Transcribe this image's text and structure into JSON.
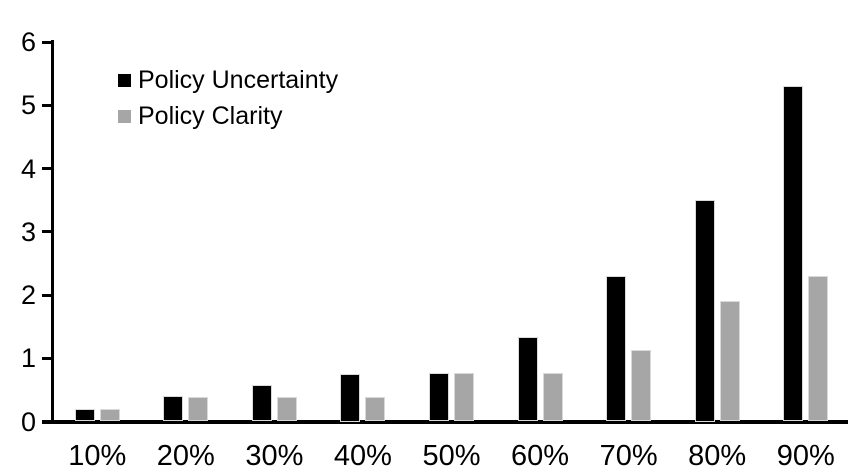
{
  "chart_data": {
    "type": "bar",
    "title": "",
    "xlabel": "",
    "ylabel": "",
    "categories": [
      "10%",
      "20%",
      "30%",
      "40%",
      "50%",
      "60%",
      "70%",
      "80%",
      "90%"
    ],
    "series": [
      {
        "name": "Policy Uncertainty",
        "color": "#000000",
        "values": [
          0.2,
          0.4,
          0.57,
          0.75,
          0.77,
          1.33,
          2.3,
          3.5,
          5.3
        ]
      },
      {
        "name": "Policy Clarity",
        "color": "#a6a6a6",
        "values": [
          0.2,
          0.38,
          0.38,
          0.38,
          0.77,
          0.77,
          1.13,
          1.9,
          2.3
        ]
      }
    ],
    "ylim": [
      0,
      6
    ],
    "yticks": [
      0,
      1,
      2,
      3,
      4,
      5,
      6
    ],
    "grid": false,
    "legend_position": "top-left",
    "background_color": "#ffffff",
    "axis_color": "#000000",
    "bar_border_color": "#d9d9d9"
  }
}
